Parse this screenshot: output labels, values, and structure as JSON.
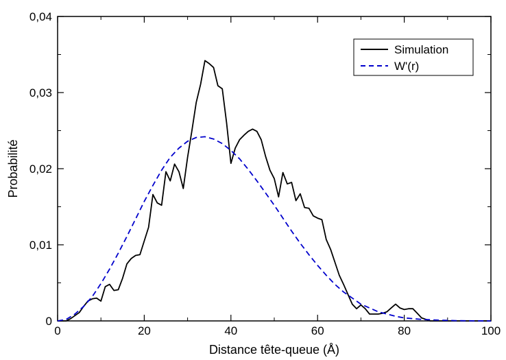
{
  "chart_data": {
    "type": "line",
    "title": "",
    "xlabel": "Distance tête-queue (Å)",
    "ylabel": "Probabilité",
    "xlim": [
      0,
      100
    ],
    "ylim": [
      0,
      0.04
    ],
    "x_ticks": [
      0,
      20,
      40,
      60,
      80,
      100
    ],
    "y_ticks": [
      0,
      0.01,
      0.02,
      0.03,
      0.04
    ],
    "x_tick_labels": [
      "0",
      "20",
      "40",
      "60",
      "80",
      "100"
    ],
    "y_tick_labels": [
      "0",
      "0,01",
      "0,02",
      "0,03",
      "0,04"
    ],
    "grid": false,
    "legend_position": "top-right",
    "series": [
      {
        "name": "Simulation",
        "color": "#000000",
        "style": "solid",
        "x": [
          0,
          2,
          3,
          5,
          6,
          7,
          8,
          9,
          10,
          11,
          12,
          13,
          14,
          15,
          16,
          17,
          18,
          19,
          20,
          21,
          22,
          23,
          24,
          25,
          26,
          27,
          28,
          29,
          30,
          31,
          32,
          33,
          34,
          35,
          36,
          37,
          38,
          39,
          40,
          41,
          42,
          43,
          44,
          45,
          46,
          47,
          48,
          49,
          50,
          51,
          52,
          53,
          54,
          55,
          56,
          57,
          58,
          59,
          60,
          61,
          62,
          63,
          64,
          65,
          66,
          67,
          68,
          69,
          70,
          71,
          72,
          73,
          74,
          75,
          76,
          77,
          78,
          79,
          80,
          81,
          82,
          83,
          84,
          86,
          90,
          95,
          100
        ],
        "y": [
          0.0,
          0.0,
          0.0003,
          0.0011,
          0.0019,
          0.0026,
          0.0029,
          0.003,
          0.0026,
          0.0045,
          0.0048,
          0.004,
          0.0041,
          0.0056,
          0.0075,
          0.0082,
          0.0086,
          0.0087,
          0.0105,
          0.0123,
          0.0166,
          0.0155,
          0.0152,
          0.0196,
          0.0184,
          0.0206,
          0.0196,
          0.0174,
          0.0215,
          0.025,
          0.0287,
          0.0311,
          0.0342,
          0.0338,
          0.0333,
          0.0309,
          0.0305,
          0.026,
          0.0207,
          0.0227,
          0.0238,
          0.0244,
          0.0249,
          0.0252,
          0.0249,
          0.0238,
          0.0216,
          0.0198,
          0.0187,
          0.0163,
          0.0195,
          0.018,
          0.0182,
          0.0158,
          0.0167,
          0.0149,
          0.0148,
          0.0138,
          0.0135,
          0.0133,
          0.0107,
          0.0094,
          0.0077,
          0.006,
          0.0048,
          0.0035,
          0.0022,
          0.0016,
          0.0021,
          0.0016,
          0.0009,
          0.0009,
          0.0009,
          0.001,
          0.0012,
          0.0017,
          0.0022,
          0.0017,
          0.0015,
          0.0016,
          0.0016,
          0.001,
          0.0004,
          0.0,
          0.0,
          0.0,
          0.0
        ]
      },
      {
        "name": "W'(r)",
        "color": "#0000cc",
        "style": "dashed",
        "x": [
          0,
          2,
          4,
          6,
          8,
          10,
          12,
          14,
          16,
          18,
          20,
          22,
          24,
          26,
          28,
          30,
          32,
          34,
          36,
          38,
          40,
          42,
          44,
          46,
          48,
          50,
          52,
          54,
          56,
          58,
          60,
          62,
          64,
          66,
          68,
          70,
          72,
          74,
          76,
          78,
          80,
          84,
          88,
          92,
          96,
          100
        ],
        "y": [
          0.0,
          0.0002,
          0.0009,
          0.0019,
          0.0032,
          0.0049,
          0.0068,
          0.0089,
          0.0111,
          0.0134,
          0.0157,
          0.0178,
          0.0198,
          0.0215,
          0.0227,
          0.0236,
          0.0241,
          0.0242,
          0.0239,
          0.0233,
          0.0224,
          0.0213,
          0.0199,
          0.0184,
          0.0168,
          0.0152,
          0.0135,
          0.0118,
          0.0102,
          0.0087,
          0.0073,
          0.006,
          0.0048,
          0.0038,
          0.003,
          0.0022,
          0.0017,
          0.0012,
          0.0009,
          0.0006,
          0.0004,
          0.0002,
          0.0001,
          4e-05,
          1e-05,
          0.0
        ]
      }
    ]
  }
}
